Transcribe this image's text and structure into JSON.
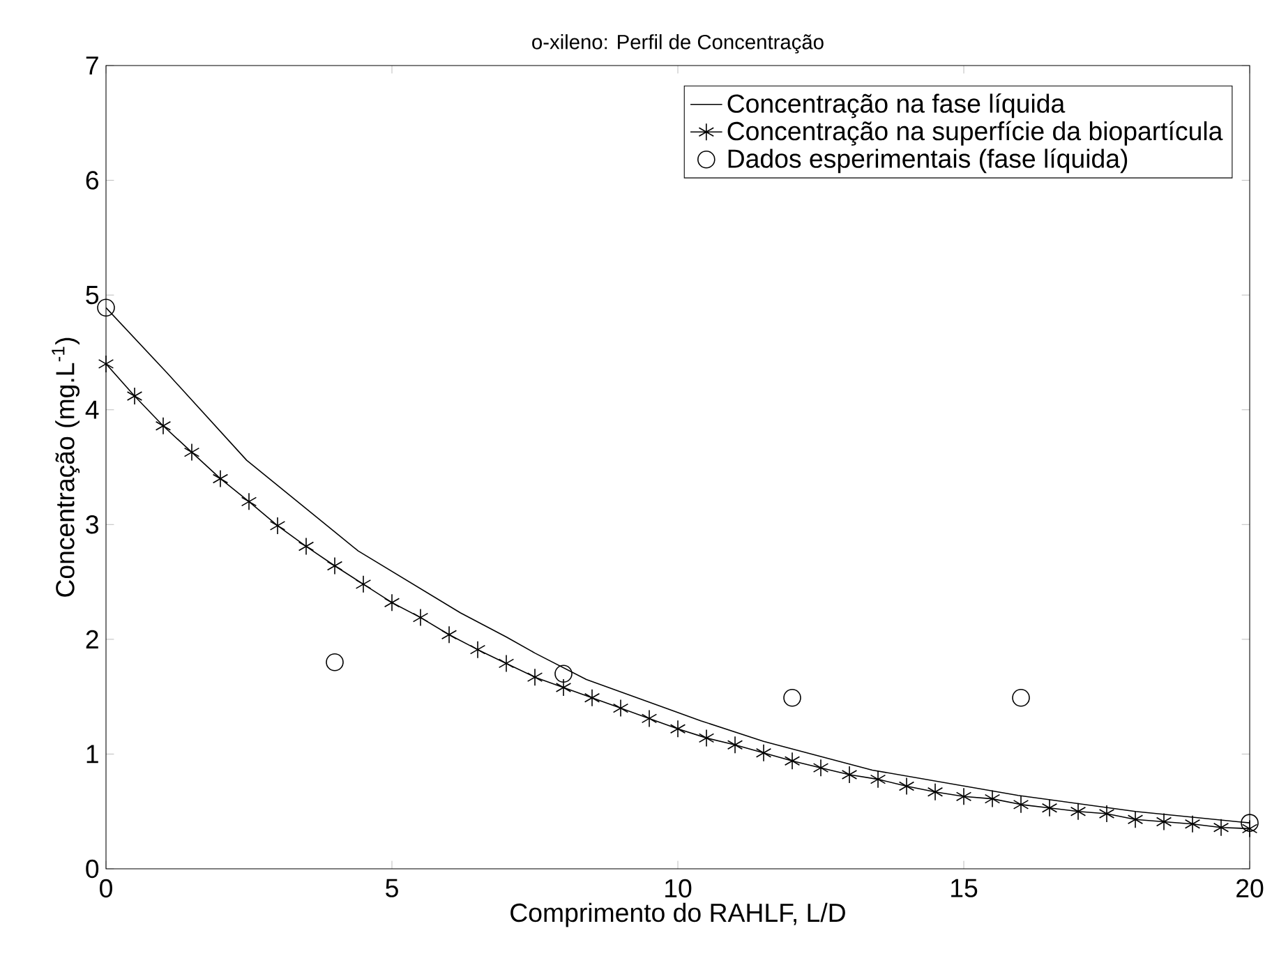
{
  "chart_data": {
    "type": "line",
    "title": "o-xileno: Perfil de Concentração",
    "xlabel": "Comprimento do RAHLF, L/D",
    "ylabel": "Concentração (mg.L$^{-1}$)",
    "xlim": [
      0,
      20
    ],
    "ylim": [
      0,
      7
    ],
    "xticks": [
      0,
      5,
      10,
      15,
      20
    ],
    "yticks": [
      0,
      1,
      2,
      3,
      4,
      5,
      6,
      7
    ],
    "grid": false,
    "legend": "top right",
    "line_style": "solid",
    "series": [
      {
        "name": "Concentração na fase líquida",
        "color": "#000000",
        "marker": "none",
        "x": [
          0,
          1.07,
          2.46,
          4.41,
          6.2,
          7.0,
          7.5,
          8.4,
          10.4,
          11.5,
          13.4,
          15.95,
          18,
          20
        ],
        "values": [
          4.89,
          4.32,
          3.56,
          2.77,
          2.23,
          2.02,
          1.88,
          1.65,
          1.29,
          1.11,
          0.86,
          0.64,
          0.5,
          0.4
        ]
      },
      {
        "name": "Concentração na superfície da biopartícula",
        "color": "#000000",
        "marker": "cross",
        "x": [
          0,
          0.5,
          1,
          1.5,
          2,
          2.5,
          3,
          3.5,
          4,
          4.5,
          5,
          5.5,
          6,
          6.5,
          7,
          7.5,
          8,
          8.5,
          9,
          9.5,
          10,
          10.5,
          11,
          11.5,
          12,
          12.5,
          13,
          13.5,
          14,
          14.5,
          15,
          15.5,
          16,
          16.5,
          17,
          17.5,
          18,
          18.5,
          19,
          19.5,
          20
        ],
        "values": [
          4.4,
          4.12,
          3.86,
          3.63,
          3.4,
          3.2,
          2.99,
          2.81,
          2.64,
          2.48,
          2.32,
          2.19,
          2.04,
          1.91,
          1.79,
          1.67,
          1.58,
          1.49,
          1.4,
          1.31,
          1.22,
          1.14,
          1.08,
          1.01,
          0.94,
          0.88,
          0.82,
          0.78,
          0.72,
          0.67,
          0.63,
          0.61,
          0.56,
          0.53,
          0.5,
          0.48,
          0.43,
          0.41,
          0.39,
          0.36,
          0.35
        ]
      },
      {
        "name": "Dados esperimentais (fase líquida)",
        "type": "scatter",
        "color": "#000000",
        "marker": "circle",
        "x": [
          0,
          4,
          8,
          12,
          16,
          20
        ],
        "values": [
          4.89,
          1.8,
          1.7,
          1.49,
          1.49,
          0.4
        ]
      }
    ]
  }
}
